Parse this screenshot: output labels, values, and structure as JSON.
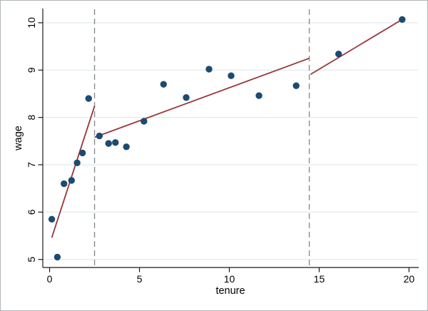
{
  "chart_data": {
    "type": "scatter",
    "title": "",
    "xlabel": "tenure",
    "ylabel": "wage",
    "xlim": [
      -0.38,
      20.5
    ],
    "ylim": [
      4.83,
      10.3
    ],
    "x_ticks": [
      0,
      5,
      10,
      15,
      20
    ],
    "y_ticks": [
      5,
      6,
      7,
      8,
      9,
      10
    ],
    "grid": "horizontal",
    "legend_position": "none",
    "points": [
      [
        0.12,
        5.85
      ],
      [
        0.43,
        5.05
      ],
      [
        0.8,
        6.6
      ],
      [
        1.22,
        6.67
      ],
      [
        1.53,
        7.04
      ],
      [
        1.83,
        7.25
      ],
      [
        2.17,
        8.4
      ],
      [
        2.77,
        7.61
      ],
      [
        3.28,
        7.45
      ],
      [
        3.66,
        7.47
      ],
      [
        4.27,
        7.38
      ],
      [
        5.25,
        7.92
      ],
      [
        6.34,
        8.7
      ],
      [
        7.6,
        8.42
      ],
      [
        8.87,
        9.02
      ],
      [
        10.1,
        8.88
      ],
      [
        11.65,
        8.46
      ],
      [
        13.72,
        8.67
      ],
      [
        16.08,
        9.34
      ],
      [
        19.62,
        10.07
      ]
    ],
    "fit_segments": [
      {
        "x1": 0.12,
        "y1": 5.46,
        "x2": 2.5,
        "y2": 8.24
      },
      {
        "x1": 2.5,
        "y1": 7.58,
        "x2": 14.45,
        "y2": 9.25
      },
      {
        "x1": 14.52,
        "y1": 8.91,
        "x2": 19.62,
        "y2": 10.07
      }
    ],
    "knot_lines_x": [
      2.5,
      14.45
    ]
  },
  "colors": {
    "marker": "#1d4a71",
    "fit_line": "#973639",
    "knot_line": "#8a8e90",
    "grid_line": "#e2ebf0",
    "axis": "#1a1a1a",
    "background": "#ffffff",
    "figure_border": "#b2b5b7"
  }
}
